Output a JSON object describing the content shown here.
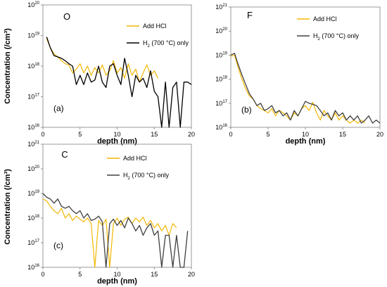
{
  "chart_data": [
    {
      "type": "line",
      "element": "O",
      "panel": "(a)",
      "xlabel": "depth (nm)",
      "ylabel": "Concentration (/cm³)",
      "xlim": [
        0,
        20
      ],
      "ylim": [
        1e+16,
        1e+20
      ],
      "yscale": "log",
      "xticks": [
        "0",
        "5",
        "10",
        "15",
        "20"
      ],
      "yticks": [
        "10^16",
        "10^17",
        "10^18",
        "10^19",
        "10^20"
      ],
      "legend_position": "top-right",
      "series": [
        {
          "name": "Add HCl",
          "color": "#f2b705",
          "x": [
            0.5,
            1,
            1.5,
            2,
            2.5,
            3,
            3.5,
            4,
            4.5,
            5,
            5.5,
            6,
            6.5,
            7,
            7.5,
            8,
            8.5,
            9,
            9.5,
            10,
            10.5,
            11,
            11.5,
            12,
            12.5,
            13,
            13.5,
            14,
            14.5,
            15,
            15.5
          ],
          "y": [
            8e+18,
            4e+18,
            2.5e+18,
            2e+18,
            1.5e+18,
            1.2e+18,
            1.1e+18,
            6e+17,
            8e+17,
            1.2e+18,
            6e+17,
            1e+18,
            5e+17,
            9e+17,
            6e+17,
            1.1e+18,
            5e+17,
            7e+17,
            1.5e+18,
            6e+17,
            9e+17,
            4e+17,
            1.2e+18,
            5e+17,
            8e+17,
            3e+17,
            6e+17,
            1.1e+18,
            5e+17,
            7e+17,
            4e+17
          ]
        },
        {
          "name": "H2 (700 °C) only",
          "color": "#000000",
          "x": [
            0.5,
            1,
            1.5,
            2,
            2.5,
            3,
            3.5,
            4,
            4.5,
            5,
            5.5,
            6,
            6.5,
            7,
            7.5,
            8,
            8.5,
            9,
            9.5,
            10,
            10.5,
            11,
            11.5,
            12,
            12.5,
            13,
            13.5,
            14,
            14.5,
            15,
            15.5,
            16,
            16.5,
            17,
            17.5,
            18,
            18.5,
            19,
            19.5,
            20
          ],
          "y": [
            9e+18,
            4e+18,
            2.2e+18,
            2e+18,
            1.8e+18,
            1.5e+18,
            1.2e+18,
            1e+18,
            2.5e+17,
            5e+17,
            2.5e+17,
            6e+17,
            3e+17,
            3.5e+17,
            1e+18,
            3e+17,
            2e+17,
            1e+18,
            1.2e+18,
            5e+17,
            2.5e+17,
            1.8e+18,
            5e+17,
            1e+17,
            5e+17,
            3e+17,
            4e+17,
            2e+17,
            7e+17,
            1.5e+17,
            1e+17,
            1e+16,
            3e+17,
            1e+16,
            2e+17,
            3e+17,
            1e+16,
            3e+17,
            3e+17,
            2.5e+17
          ]
        }
      ]
    },
    {
      "type": "line",
      "element": "F",
      "panel": "(b)",
      "xlabel": "depth (nm)",
      "ylabel": "",
      "xlim": [
        0,
        20
      ],
      "ylim": [
        1e+16,
        1e+21
      ],
      "yscale": "log",
      "xticks": [
        "0",
        "5",
        "10",
        "15",
        "20"
      ],
      "yticks": [
        "10^16",
        "10^17",
        "10^18",
        "10^19",
        "10^20",
        "10^21"
      ],
      "legend_position": "top-right",
      "series": [
        {
          "name": "Add HCl",
          "color": "#f2b705",
          "x": [
            0,
            0.5,
            1,
            1.5,
            2,
            2.5,
            3,
            3.5,
            4,
            4.5,
            5,
            5.5,
            6,
            6.5,
            7,
            7.5,
            8,
            8.5,
            9,
            9.5,
            10,
            10.5,
            11,
            11.5,
            12,
            12.5,
            13,
            13.5,
            14,
            14.5,
            15,
            15.5,
            16,
            16.5,
            17,
            17.5,
            18
          ],
          "y": [
            9e+18,
            1e+19,
            3e+18,
            1e+18,
            4e+17,
            2e+17,
            1.5e+17,
            8e+16,
            6e+16,
            5e+16,
            4e+16,
            6e+16,
            3e+16,
            5e+16,
            4e+16,
            3e+16,
            2e+16,
            4e+16,
            3e+16,
            6e+16,
            8e+16,
            5e+16,
            1.1e+17,
            4e+16,
            2e+16,
            5e+16,
            3e+16,
            2e+16,
            4e+16,
            2e+16,
            3e+16,
            2e+16,
            1.5e+16,
            2e+16,
            1.5e+16,
            2e+16,
            1.5e+16
          ]
        },
        {
          "name": "H2 (700 °C) only",
          "color": "#404040",
          "x": [
            0,
            0.5,
            1,
            1.5,
            2,
            2.5,
            3,
            3.5,
            4,
            4.5,
            5,
            5.5,
            6,
            6.5,
            7,
            7.5,
            8,
            8.5,
            9,
            9.5,
            10,
            10.5,
            11,
            11.5,
            12,
            12.5,
            13,
            13.5,
            14,
            14.5,
            15,
            15.5,
            16,
            16.5,
            17,
            17.5,
            18,
            18.5,
            19,
            19.5,
            20
          ],
          "y": [
            1e+19,
            1.2e+19,
            4e+18,
            1.5e+18,
            6e+17,
            2.5e+17,
            1.5e+17,
            8e+16,
            1e+17,
            5e+16,
            6e+16,
            8e+16,
            4e+16,
            5e+16,
            3e+16,
            4e+16,
            2e+16,
            5e+16,
            3e+16,
            6e+16,
            1.2e+17,
            1e+17,
            9e+16,
            8e+16,
            5e+16,
            3e+16,
            4e+16,
            2e+16,
            5e+16,
            3e+16,
            4e+16,
            2e+16,
            3e+16,
            2e+16,
            3e+16,
            1.5e+16,
            2e+16,
            3e+16,
            1.5e+16,
            2e+16,
            1.5e+16
          ]
        }
      ]
    },
    {
      "type": "line",
      "element": "C",
      "panel": "(c)",
      "xlabel": "depth (nm)",
      "ylabel": "Concentration (/cm³)",
      "xlim": [
        0,
        20
      ],
      "ylim": [
        1e+16,
        1e+21
      ],
      "yscale": "log",
      "xticks": [
        "0",
        "5",
        "10",
        "15",
        "20"
      ],
      "yticks": [
        "10^16",
        "10^17",
        "10^18",
        "10^19",
        "10^20",
        "10^21"
      ],
      "legend_position": "top-right",
      "series": [
        {
          "name": "Add HCl",
          "color": "#f2b705",
          "x": [
            0,
            0.5,
            1,
            1.5,
            2,
            2.5,
            3,
            3.5,
            4,
            4.5,
            5,
            5.5,
            6,
            6.5,
            7,
            7.5,
            8,
            8.5,
            9,
            9.5,
            10,
            10.5,
            11,
            11.5,
            12,
            12.5,
            13,
            13.5,
            14,
            14.5,
            15,
            15.5,
            16,
            16.5,
            17,
            17.5,
            18
          ],
          "y": [
            6e+18,
            5e+18,
            3e+18,
            2e+18,
            1.5e+18,
            2.5e+18,
            1e+18,
            1.5e+18,
            8e+17,
            1.2e+18,
            9e+17,
            7e+17,
            1e+18,
            6e+17,
            1e+16,
            8e+17,
            5e+17,
            9e+17,
            1e+16,
            6e+17,
            1e+18,
            5e+17,
            9e+17,
            1.1e+18,
            6e+17,
            1e+18,
            7e+17,
            1.1e+18,
            5e+17,
            8e+17,
            4e+17,
            6e+17,
            3e+17,
            5e+17,
            2e+17,
            6e+17,
            4e+17
          ]
        },
        {
          "name": "H2 (700 °C) only",
          "color": "#404040",
          "x": [
            0,
            0.5,
            1,
            1.5,
            2,
            2.5,
            3,
            3.5,
            4,
            4.5,
            5,
            5.5,
            6,
            6.5,
            7,
            7.5,
            8,
            8.5,
            9,
            9.5,
            10,
            10.5,
            11,
            11.5,
            12,
            12.5,
            13,
            13.5,
            14,
            14.5,
            15,
            15.5,
            16,
            16.5,
            17,
            17.5,
            18,
            18.5,
            19,
            19.5
          ],
          "y": [
            1e+19,
            7e+18,
            6e+18,
            4e+18,
            6e+18,
            3e+18,
            2.5e+18,
            3e+18,
            2e+18,
            1.5e+18,
            2e+18,
            1e+18,
            1.5e+18,
            8e+17,
            9e+17,
            1.2e+18,
            7e+17,
            1e+16,
            6e+17,
            9e+17,
            5e+17,
            8e+17,
            4e+17,
            1e+18,
            6e+17,
            3e+17,
            5e+17,
            2e+17,
            4e+17,
            6e+17,
            2e+17,
            3e+17,
            1e+16,
            2e+17,
            2e+17,
            1e+16,
            2e+17,
            1e+16,
            1e+16,
            3e+17
          ]
        }
      ]
    }
  ]
}
